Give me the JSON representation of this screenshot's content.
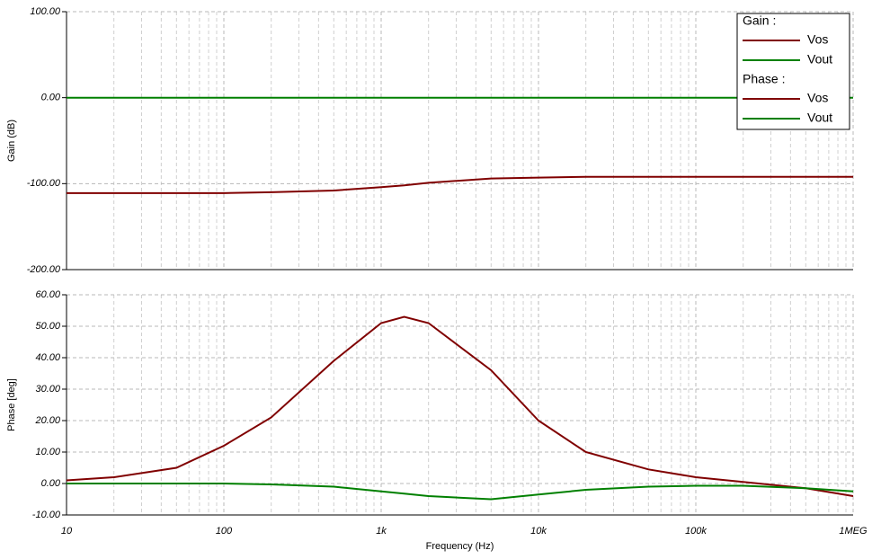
{
  "chart_data": [
    {
      "type": "line",
      "ylabel": "Gain (dB)",
      "legend_title": "Gain :",
      "x": [
        10,
        20,
        50,
        100,
        200,
        500,
        1000,
        1400,
        2000,
        5000,
        10000,
        20000,
        50000,
        100000,
        200000,
        500000,
        1000000
      ],
      "xlim": [
        10,
        1000000
      ],
      "xticks": [
        10,
        100,
        1000,
        10000,
        100000,
        1000000
      ],
      "log_x": true,
      "ylim": [
        -200,
        100
      ],
      "yticks": [
        {
          "value": 100,
          "label": "100.00"
        },
        {
          "value": 0,
          "label": "0.00"
        },
        {
          "value": -100,
          "label": "-100.00"
        },
        {
          "value": -200,
          "label": "-200.00"
        }
      ],
      "grid": true,
      "series": [
        {
          "name": "Vos",
          "color": "#800000",
          "values": [
            -111,
            -111,
            -111,
            -111,
            -110,
            -108,
            -104,
            -102,
            -99,
            -94,
            -93,
            -92,
            -92,
            -92,
            -92,
            -92,
            -92
          ]
        },
        {
          "name": "Vout",
          "color": "#008000",
          "values": [
            0,
            0,
            0,
            0,
            0,
            0,
            0,
            0,
            0,
            0,
            0,
            0,
            0,
            0,
            0,
            0,
            0
          ]
        }
      ]
    },
    {
      "type": "line",
      "ylabel": "Phase [deg]",
      "xlabel": "Frequency (Hz)",
      "legend_title": "Phase :",
      "x": [
        10,
        20,
        50,
        100,
        200,
        500,
        1000,
        1400,
        2000,
        5000,
        10000,
        20000,
        50000,
        100000,
        200000,
        500000,
        1000000
      ],
      "xlim": [
        10,
        1000000
      ],
      "xticks": [
        10,
        100,
        {
          "value": 1000,
          "label": "1k"
        },
        {
          "value": 10000,
          "label": "10k"
        },
        {
          "value": 100000,
          "label": "100k"
        },
        {
          "value": 1000000,
          "label": "1MEG"
        }
      ],
      "log_x": true,
      "ylim": [
        -10,
        60
      ],
      "yticks": [
        {
          "value": -10,
          "label": "-10.00"
        },
        {
          "value": 0,
          "label": "0.00"
        },
        {
          "value": 10,
          "label": "10.00"
        },
        {
          "value": 20,
          "label": "20.00"
        },
        {
          "value": 30,
          "label": "30.00"
        },
        {
          "value": 40,
          "label": "40.00"
        },
        {
          "value": 50,
          "label": "50.00"
        },
        {
          "value": 60,
          "label": "60.00"
        }
      ],
      "grid": true,
      "series": [
        {
          "name": "Vos",
          "color": "#800000",
          "values": [
            1,
            2,
            5,
            12,
            21,
            39,
            51,
            53,
            51,
            36,
            20,
            10,
            4.5,
            2,
            0.5,
            -1.5,
            -4
          ]
        },
        {
          "name": "Vout",
          "color": "#008000",
          "values": [
            0,
            0,
            0,
            0,
            -0.3,
            -1,
            -2.5,
            -3.2,
            -4,
            -5,
            -3.5,
            -2,
            -1,
            -0.7,
            -0.7,
            -1.5,
            -2.5
          ]
        }
      ]
    }
  ]
}
